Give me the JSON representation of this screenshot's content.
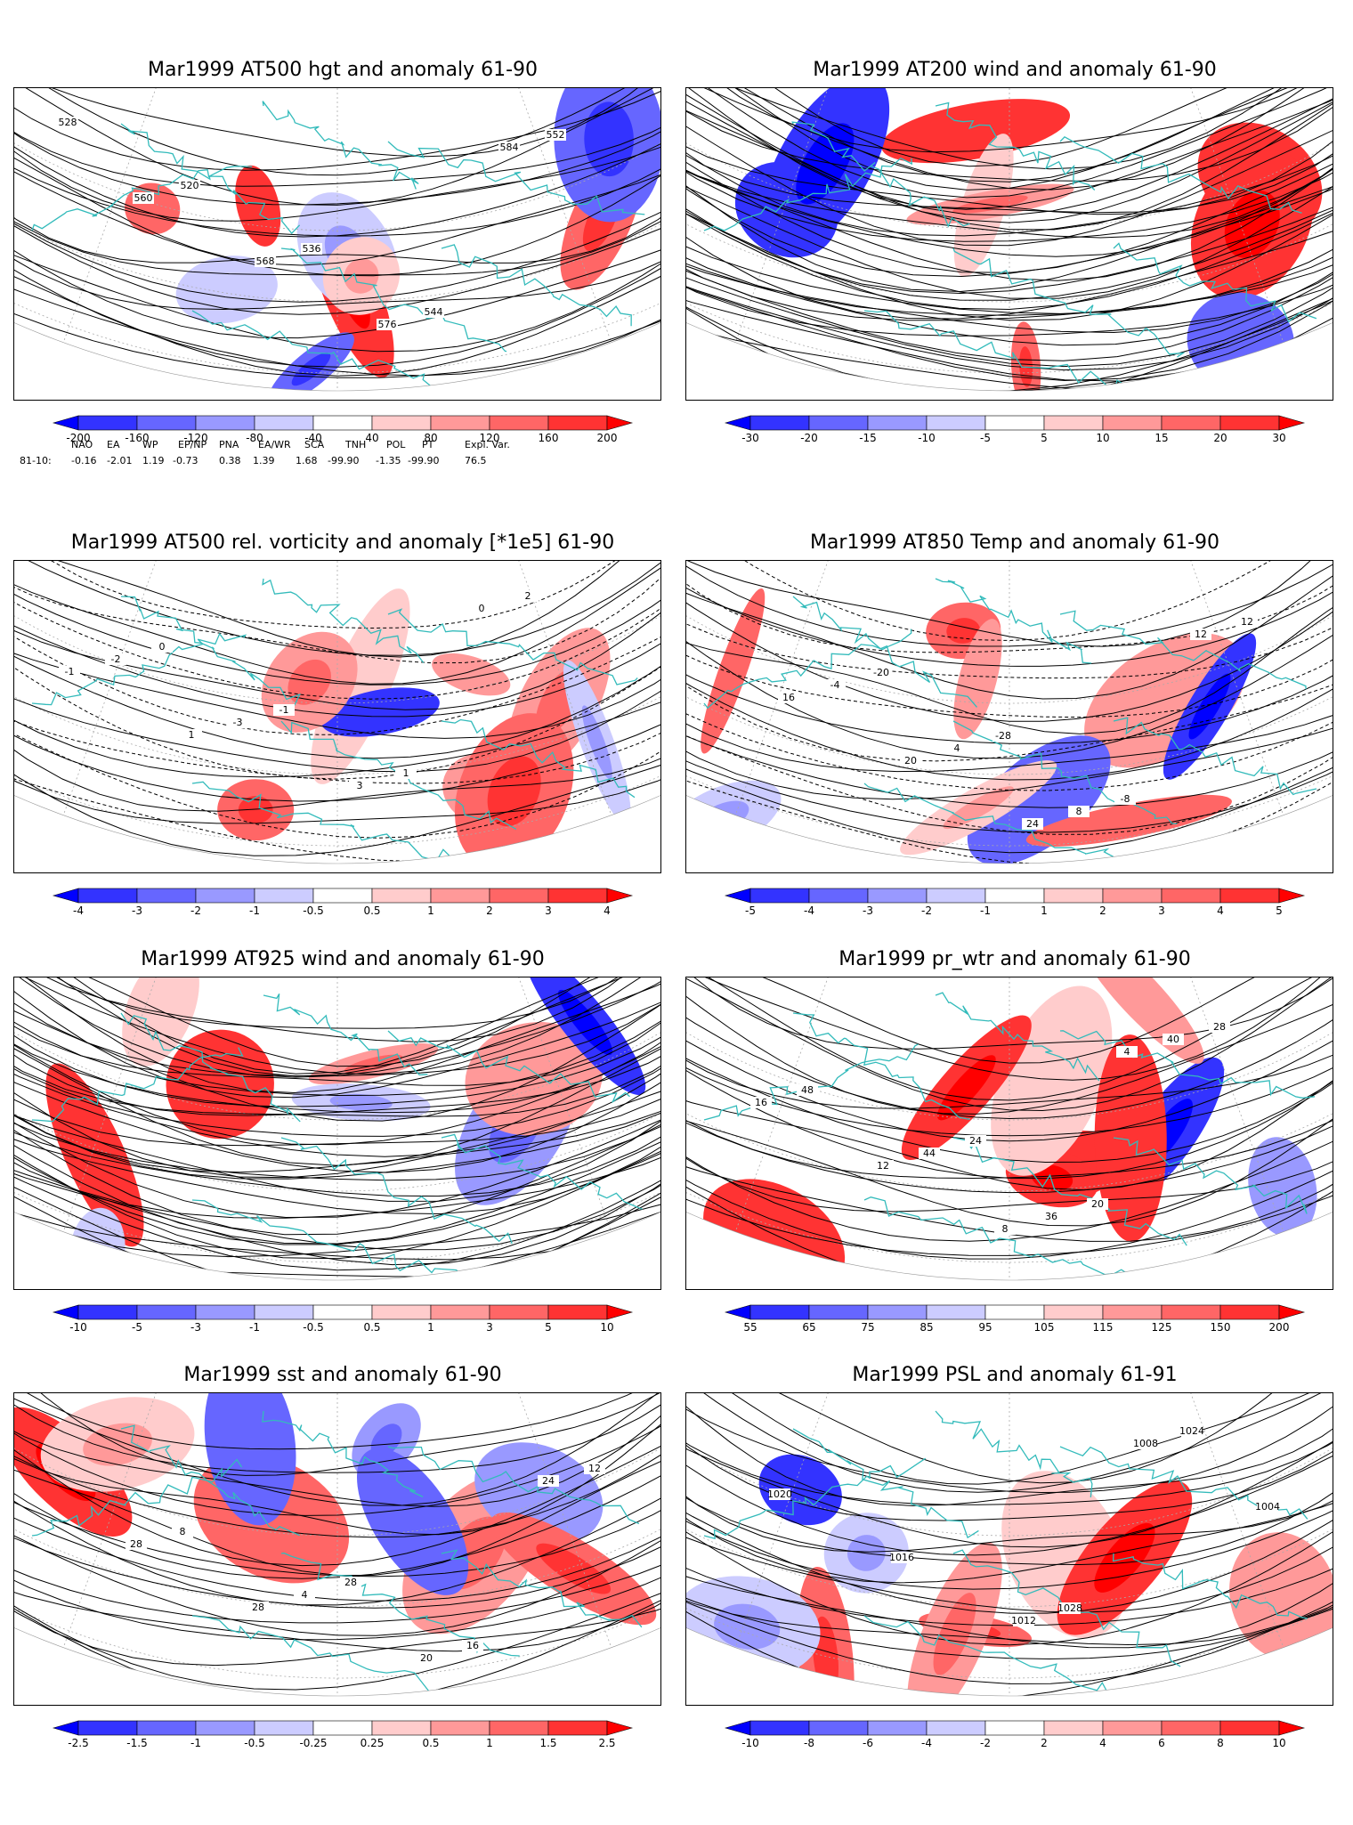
{
  "panels": [
    {
      "id": "p1",
      "title": "Mar1999 AT500 hgt and anomaly 61-90",
      "type": "contour",
      "labels": [
        "528",
        "520",
        "536",
        "544",
        "552",
        "560",
        "568",
        "576",
        "584"
      ],
      "colorbar": [
        "-200",
        "-160",
        "-120",
        "-80",
        "-40",
        "40",
        "80",
        "120",
        "160",
        "200"
      ]
    },
    {
      "id": "p2",
      "title": "Mar1999 AT200 wind and anomaly 61-90",
      "type": "streamline",
      "labels": [],
      "colorbar": [
        "-30",
        "-20",
        "-15",
        "-10",
        "-5",
        "5",
        "10",
        "15",
        "20",
        "30"
      ]
    },
    {
      "id": "p3",
      "title": "Mar1999 AT500 rel. vorticity and anomaly [*1e5] 61-90",
      "type": "contour",
      "labels": [
        "0",
        "-1",
        "1",
        "2",
        "-2",
        "-3",
        "3",
        "0",
        "-1",
        "1"
      ],
      "colorbar": [
        "-4",
        "-3",
        "-2",
        "-1",
        "-0.5",
        "0.5",
        "1",
        "2",
        "3",
        "4"
      ]
    },
    {
      "id": "p4",
      "title": "Mar1999 AT850 Temp and anomaly 61-90",
      "type": "contour",
      "labels": [
        "-20",
        "-28",
        "-8",
        "12",
        "-4",
        "4",
        "8",
        "12",
        "16",
        "20",
        "24"
      ],
      "colorbar": [
        "-5",
        "-4",
        "-3",
        "-2",
        "-1",
        "1",
        "2",
        "3",
        "4",
        "5"
      ]
    },
    {
      "id": "p5",
      "title": "Mar1999 AT925 wind and anomaly 61-90",
      "type": "streamline",
      "labels": [],
      "colorbar": [
        "-10",
        "-5",
        "-3",
        "-1",
        "-0.5",
        "0.5",
        "1",
        "3",
        "5",
        "10"
      ]
    },
    {
      "id": "p6",
      "title": "Mar1999 pr_wtr and anomaly 61-90",
      "type": "contour",
      "labels": [
        "24",
        "20",
        "28",
        "48",
        "44",
        "36",
        "40",
        "16",
        "12",
        "8",
        "4"
      ],
      "colorbar": [
        "55",
        "65",
        "75",
        "85",
        "95",
        "105",
        "115",
        "125",
        "150",
        "200"
      ]
    },
    {
      "id": "p7",
      "title": "Mar1999 sst and anomaly 61-90",
      "type": "contour",
      "labels": [
        "28",
        "16",
        "12",
        "8",
        "4",
        "20",
        "24",
        "28",
        "28"
      ],
      "colorbar": [
        "-2.5",
        "-1.5",
        "-1",
        "-0.5",
        "-0.25",
        "0.25",
        "0.5",
        "1",
        "1.5",
        "2.5"
      ]
    },
    {
      "id": "p8",
      "title": "Mar1999 PSL and anomaly 61-91",
      "type": "contour",
      "labels": [
        "1028",
        "1024",
        "1020",
        "1016",
        "1012",
        "1008",
        "1004"
      ],
      "colorbar": [
        "-10",
        "-8",
        "-6",
        "-4",
        "-2",
        "2",
        "4",
        "6",
        "8",
        "10"
      ]
    }
  ],
  "teleconnection": {
    "headers": [
      "NAO",
      "EA",
      "WP",
      "EP/NP",
      "PNA",
      "EA/WR",
      "SCA",
      "TNH",
      "POL",
      "PT",
      "Expl. Var."
    ],
    "row_label": "81-10:",
    "values": [
      "-0.16",
      "-2.01",
      "1.19",
      "-0.73",
      "0.38",
      "1.39",
      "1.68",
      "-99.90",
      "-1.35",
      "-99.90",
      "76.5"
    ]
  },
  "colors": {
    "blues": [
      "#0000ff",
      "#3333ff",
      "#6666ff",
      "#9999ff",
      "#ccccff"
    ],
    "reds": [
      "#ffcccc",
      "#ff9999",
      "#ff6666",
      "#ff3333",
      "#ff0000"
    ],
    "coast": "#33bbbb",
    "contour": "#000000",
    "grid": "#aaaaaa"
  }
}
